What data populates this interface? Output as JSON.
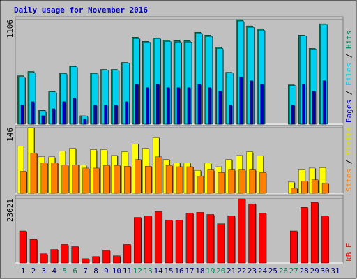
{
  "legend_separator": " / ",
  "chart_data": [
    {
      "type": "bar",
      "title": "Daily usage for November 2016",
      "ylim": [
        0,
        1106
      ],
      "yticks": [
        1106
      ],
      "series": [
        {
          "name": "Hits",
          "color": "#00805c",
          "values": [
            512,
            557,
            148,
            349,
            542,
            616,
            89,
            542,
            579,
            579,
            653,
            920,
            876,
            913,
            890,
            883,
            883,
            972,
            942,
            816,
            549,
            1106,
            1039,
            1009,
            0,
            0,
            416,
            942,
            801,
            1061,
            0
          ]
        },
        {
          "name": "Files",
          "color": "#00d0f0",
          "values": [
            497,
            542,
            141,
            341,
            535,
            608,
            86,
            535,
            571,
            571,
            646,
            905,
            868,
            905,
            875,
            868,
            868,
            957,
            927,
            801,
            542,
            1091,
            1024,
            994,
            0,
            0,
            409,
            935,
            794,
            1054,
            0
          ]
        },
        {
          "name": "Pages",
          "color": "#0000c0",
          "values": [
            200,
            237,
            89,
            163,
            237,
            274,
            52,
            200,
            200,
            200,
            237,
            423,
            386,
            423,
            386,
            386,
            386,
            423,
            386,
            349,
            200,
            497,
            460,
            423,
            0,
            0,
            200,
            423,
            349,
            460,
            0
          ]
        }
      ]
    },
    {
      "type": "bar",
      "ylim": [
        0,
        146
      ],
      "yticks": [
        146
      ],
      "series": [
        {
          "name": "Visits",
          "color": "#ffff00",
          "values": [
            105,
            146,
            81,
            81,
            94,
            100,
            63,
            97,
            97,
            84,
            92,
            110,
            100,
            124,
            75,
            68,
            68,
            51,
            67,
            59,
            75,
            84,
            92,
            83,
            0,
            0,
            25,
            52,
            56,
            57,
            0
          ]
        },
        {
          "name": "Sites",
          "color": "#ff8000",
          "values": [
            49,
            89,
            68,
            68,
            63,
            63,
            56,
            56,
            62,
            62,
            60,
            75,
            60,
            81,
            62,
            59,
            59,
            38,
            52,
            46,
            52,
            52,
            52,
            46,
            0,
            0,
            11,
            27,
            30,
            22,
            0
          ]
        }
      ]
    },
    {
      "type": "bar",
      "ylim": [
        0,
        23621
      ],
      "yticks": [
        23621
      ],
      "categories": [
        "1",
        "2",
        "3",
        "4",
        "5",
        "6",
        "7",
        "8",
        "9",
        "10",
        "11",
        "12",
        "13",
        "14",
        "15",
        "16",
        "17",
        "18",
        "19",
        "20",
        "21",
        "22",
        "23",
        "24",
        "25",
        "26",
        "27",
        "28",
        "29",
        "30",
        "31"
      ],
      "category_colors": [
        "#000080",
        "#000080",
        "#000080",
        "#000080",
        "#00805c",
        "#00805c",
        "#000080",
        "#000080",
        "#000080",
        "#000080",
        "#000080",
        "#00805c",
        "#00805c",
        "#000080",
        "#000080",
        "#000080",
        "#000080",
        "#000080",
        "#00805c",
        "#00805c",
        "#000080",
        "#000080",
        "#000080",
        "#000080",
        "#000080",
        "#00805c",
        "#00805c",
        "#000080",
        "#000080",
        "#000080",
        "#000080"
      ],
      "series": [
        {
          "name": "kB F",
          "color": "#ff0000",
          "values": [
            11813,
            8663,
            3413,
            4988,
            6825,
            6038,
            1575,
            2363,
            4725,
            2625,
            6825,
            16800,
            17325,
            18900,
            15750,
            15750,
            18375,
            18638,
            17850,
            14438,
            17325,
            23621,
            21788,
            18375,
            0,
            0,
            11813,
            20475,
            22313,
            17325,
            0
          ]
        }
      ]
    }
  ]
}
